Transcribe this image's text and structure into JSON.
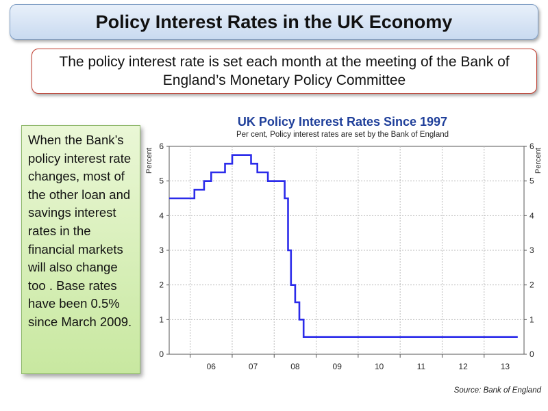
{
  "slide": {
    "title": "Policy Interest Rates in the UK Economy",
    "subtitle": "The policy interest rate is set each month at the meeting of the Bank of England’s Monetary Policy Committee",
    "side_text": "When the Bank’s policy interest rate changes, most of the other loan and savings interest rates in the financial markets will also change too . Base rates have been 0.5% since March 2009."
  },
  "chart_data": {
    "type": "line",
    "title": "UK Policy Interest Rates Since 1997",
    "subtitle": "Per cent, Policy interest rates are set by the Bank of England",
    "ylabel": "Percent",
    "ylabel_right": "Percent",
    "source": "Source: Bank of England",
    "x_tick_labels": [
      "06",
      "07",
      "08",
      "09",
      "10",
      "11",
      "12",
      "13"
    ],
    "xlim": [
      2005.5,
      2013.95
    ],
    "ylim": [
      0,
      6
    ],
    "y_ticks": [
      0,
      1,
      2,
      3,
      4,
      5,
      6
    ],
    "grid": true,
    "line_color": "#2b2bea",
    "title_color": "#1f3f9a",
    "series": [
      {
        "step": true,
        "points": [
          [
            2005.5,
            4.5
          ],
          [
            2006.1,
            4.5
          ],
          [
            2006.1,
            4.75
          ],
          [
            2006.33,
            4.75
          ],
          [
            2006.33,
            5.0
          ],
          [
            2006.5,
            5.0
          ],
          [
            2006.5,
            5.25
          ],
          [
            2006.83,
            5.25
          ],
          [
            2006.83,
            5.5
          ],
          [
            2007.0,
            5.5
          ],
          [
            2007.0,
            5.75
          ],
          [
            2007.45,
            5.75
          ],
          [
            2007.45,
            5.5
          ],
          [
            2007.6,
            5.5
          ],
          [
            2007.6,
            5.25
          ],
          [
            2007.85,
            5.25
          ],
          [
            2007.85,
            5.0
          ],
          [
            2008.25,
            5.0
          ],
          [
            2008.25,
            4.5
          ],
          [
            2008.33,
            4.5
          ],
          [
            2008.33,
            3.0
          ],
          [
            2008.4,
            3.0
          ],
          [
            2008.4,
            2.0
          ],
          [
            2008.5,
            2.0
          ],
          [
            2008.5,
            1.5
          ],
          [
            2008.6,
            1.5
          ],
          [
            2008.6,
            1.0
          ],
          [
            2008.7,
            1.0
          ],
          [
            2008.7,
            0.5
          ],
          [
            2013.8,
            0.5
          ]
        ]
      }
    ]
  }
}
